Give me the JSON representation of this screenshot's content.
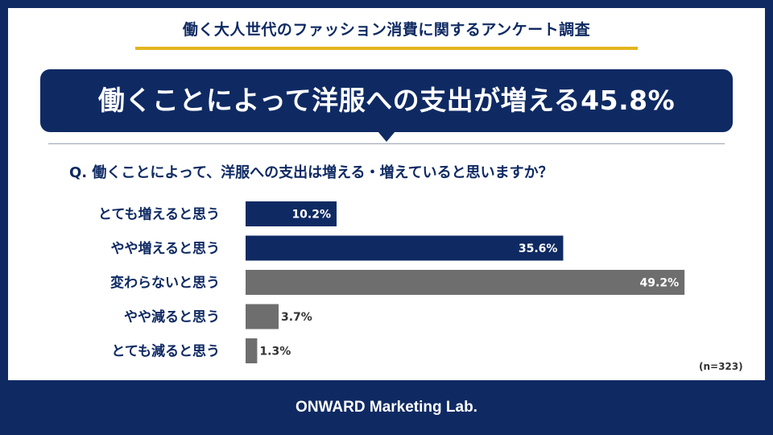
{
  "header": {
    "survey_title": "働く大人世代のファッション消費に関するアンケート調査",
    "headline": "働くことによって洋服への支出が増える45.8%"
  },
  "question": "Q. 働くことによって、洋服への支出は増える・増えていると思いますか？",
  "sample_size": "(n=323)",
  "footer": {
    "brand": "ONWARD Marketing Lab."
  },
  "colors": {
    "navy": "#0f2a63",
    "gray": "#6e6e6e",
    "accent": "#e3b51e"
  },
  "chart_data": {
    "type": "bar",
    "orientation": "horizontal",
    "categories": [
      "とても増えると思う",
      "やや増えると思う",
      "変わらないと思う",
      "やや減ると思う",
      "とても減ると思う"
    ],
    "values": [
      10.2,
      35.6,
      49.2,
      3.7,
      1.3
    ],
    "value_labels": [
      "10.2%",
      "35.6%",
      "49.2%",
      "3.7%",
      "1.3%"
    ],
    "bar_colors": [
      "#0f2a63",
      "#0f2a63",
      "#6e6e6e",
      "#6e6e6e",
      "#6e6e6e"
    ],
    "unit": "%"
  }
}
